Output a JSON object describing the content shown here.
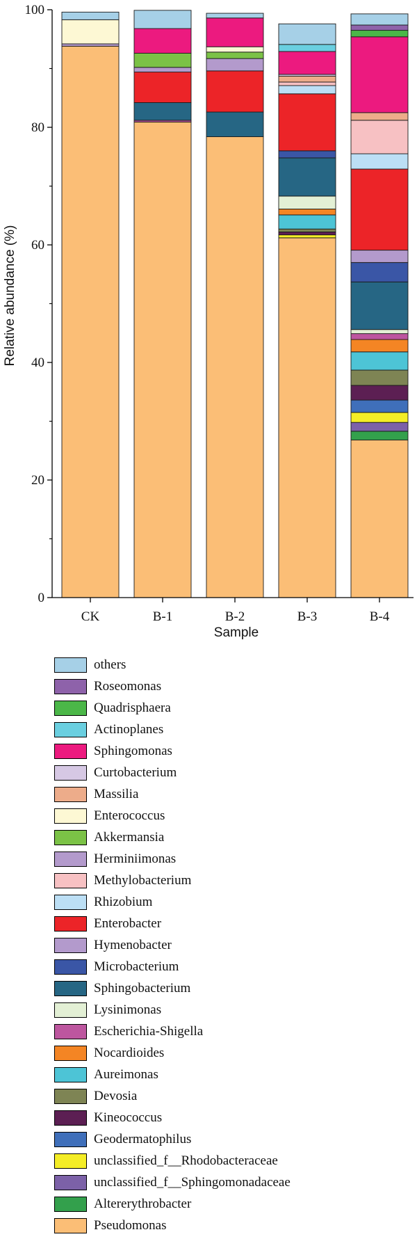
{
  "chart_data": {
    "type": "bar",
    "stacked": true,
    "xlabel": "Sample",
    "ylabel": "Relative abundance (%)",
    "ylim": [
      0,
      100
    ],
    "yticks": [
      0,
      20,
      40,
      60,
      80,
      100
    ],
    "categories": [
      "CK",
      "B-1",
      "B-2",
      "B-3",
      "B-4"
    ],
    "series": [
      {
        "name": "Pseudomonas",
        "color": "#fbbe76",
        "values": [
          93.8,
          80.9,
          78.4,
          61.2,
          26.8
        ]
      },
      {
        "name": "Altererythrobacter",
        "color": "#33a04c",
        "values": [
          0,
          0,
          0,
          0,
          1.5
        ]
      },
      {
        "name": "unclassified_f__Sphingomonadaceae",
        "color": "#7c61a8",
        "values": [
          0,
          0,
          0,
          0,
          1.5
        ]
      },
      {
        "name": "unclassified_f__Rhodobacteraceae",
        "color": "#f4ed26",
        "values": [
          0,
          0,
          0,
          0.5,
          1.7
        ]
      },
      {
        "name": "Geodermatophilus",
        "color": "#3f6fba",
        "values": [
          0,
          0,
          0,
          0,
          2.1
        ]
      },
      {
        "name": "Kineococcus",
        "color": "#5c1f53",
        "values": [
          0,
          0,
          0,
          0.5,
          2.5
        ]
      },
      {
        "name": "Devosia",
        "color": "#7e8454",
        "values": [
          0,
          0,
          0,
          0.5,
          2.6
        ]
      },
      {
        "name": "Aureimonas",
        "color": "#4dc4d6",
        "values": [
          0,
          0,
          0,
          2.4,
          3.1
        ]
      },
      {
        "name": "Nocardioides",
        "color": "#f48524",
        "values": [
          0,
          0,
          0,
          1.0,
          2.1
        ]
      },
      {
        "name": "Escherichia-Shigella",
        "color": "#bd569f",
        "values": [
          0,
          0.3,
          0,
          0,
          1.0
        ]
      },
      {
        "name": "Lysinimonas",
        "color": "#e3f0d5",
        "values": [
          0,
          0,
          0,
          2.2,
          0.7
        ]
      },
      {
        "name": "Sphingobacterium",
        "color": "#266684",
        "values": [
          0,
          3.0,
          4.2,
          6.5,
          8.1
        ]
      },
      {
        "name": "Microbacterium",
        "color": "#3a56a6",
        "values": [
          0,
          0,
          0,
          1.2,
          3.3
        ]
      },
      {
        "name": "Hymenobacter",
        "color": "#b39acc",
        "values": [
          0,
          0,
          0,
          0,
          2.1
        ]
      },
      {
        "name": "Enterobacter",
        "color": "#ec2428",
        "values": [
          0,
          5.2,
          7.0,
          9.7,
          13.8
        ]
      },
      {
        "name": "Rhizobium",
        "color": "#bcdff5",
        "values": [
          0,
          0,
          0,
          1.4,
          2.6
        ]
      },
      {
        "name": "Methylobacterium",
        "color": "#f7c1c3",
        "values": [
          0,
          0,
          0,
          0.6,
          5.7
        ]
      },
      {
        "name": "Herminiimonas",
        "color": "#b39acc",
        "values": [
          0.4,
          0.8,
          2.1,
          0,
          0
        ]
      },
      {
        "name": "Akkermansia",
        "color": "#7bc246",
        "values": [
          0,
          2.4,
          1.1,
          0,
          0
        ]
      },
      {
        "name": "Enterococcus",
        "color": "#fdf8d4",
        "values": [
          4.1,
          0,
          0.9,
          0,
          0
        ]
      },
      {
        "name": "Massilia",
        "color": "#edac8a",
        "values": [
          0,
          0,
          0,
          1.0,
          1.3
        ]
      },
      {
        "name": "Curtobacterium",
        "color": "#d6c8e4",
        "values": [
          0,
          0,
          0,
          0.3,
          0
        ]
      },
      {
        "name": "Sphingomonas",
        "color": "#ec1a7f",
        "values": [
          0,
          4.2,
          4.9,
          3.9,
          12.9
        ]
      },
      {
        "name": "Actinoplanes",
        "color": "#6acfe0",
        "values": [
          0,
          0,
          0,
          1.2,
          0
        ]
      },
      {
        "name": "Quadrisphaera",
        "color": "#4bb748",
        "values": [
          0,
          0,
          0,
          0,
          1.1
        ]
      },
      {
        "name": "Roseomonas",
        "color": "#8e62aa",
        "values": [
          0,
          0,
          0,
          0,
          0.9
        ]
      },
      {
        "name": "others",
        "color": "#a6d0e7",
        "values": [
          1.3,
          3.1,
          0.8,
          3.5,
          1.9
        ]
      }
    ],
    "legend_order": [
      "others",
      "Roseomonas",
      "Quadrisphaera",
      "Actinoplanes",
      "Sphingomonas",
      "Curtobacterium",
      "Massilia",
      "Enterococcus",
      "Akkermansia",
      "Herminiimonas",
      "Methylobacterium",
      "Rhizobium",
      "Enterobacter",
      "Hymenobacter",
      "Microbacterium",
      "Sphingobacterium",
      "Lysinimonas",
      "Escherichia-Shigella",
      "Nocardioides",
      "Aureimonas",
      "Devosia",
      "Kineococcus",
      "Geodermatophilus",
      "unclassified_f__Rhodobacteraceae",
      "unclassified_f__Sphingomonadaceae",
      "Altererythrobacter",
      "Pseudomonas"
    ],
    "legend_placement": "bottom",
    "grid": false
  }
}
